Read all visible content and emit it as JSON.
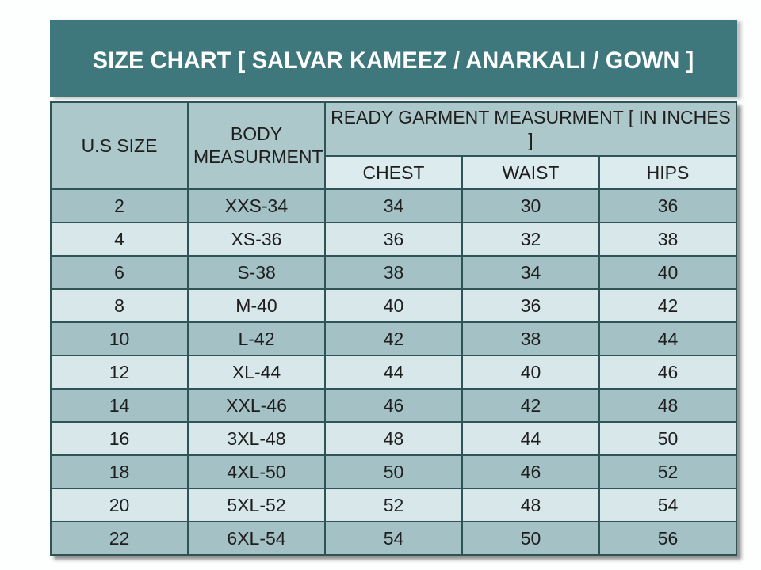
{
  "title": "SIZE CHART [ SALVAR KAMEEZ / ANARKALI / GOWN ]",
  "table": {
    "col_us_size": "U.S SIZE",
    "col_body_measurement": "BODY MEASURMENT",
    "col_ready_garment": "READY GARMENT MEASURMENT [ IN INCHES ]",
    "sub_columns": [
      "CHEST",
      "WAIST",
      "HIPS"
    ]
  },
  "chart_data": {
    "type": "table",
    "title": "SIZE CHART [ SALVAR KAMEEZ / ANARKALI / GOWN ]",
    "column_headers": [
      "U.S SIZE",
      "BODY MEASURMENT",
      "CHEST",
      "WAIST",
      "HIPS"
    ],
    "spanning_header": {
      "label": "READY GARMENT MEASURMENT [ IN INCHES ]",
      "covers": [
        "CHEST",
        "WAIST",
        "HIPS"
      ]
    },
    "units": "inches",
    "rows": [
      [
        "2",
        "XXS-34",
        "34",
        "30",
        "36"
      ],
      [
        "4",
        "XS-36",
        "36",
        "32",
        "38"
      ],
      [
        "6",
        "S-38",
        "38",
        "34",
        "40"
      ],
      [
        "8",
        "M-40",
        "40",
        "36",
        "42"
      ],
      [
        "10",
        "L-42",
        "42",
        "38",
        "44"
      ],
      [
        "12",
        "XL-44",
        "44",
        "40",
        "46"
      ],
      [
        "14",
        "XXL-46",
        "46",
        "42",
        "48"
      ],
      [
        "16",
        "3XL-48",
        "48",
        "44",
        "50"
      ],
      [
        "18",
        "4XL-50",
        "50",
        "46",
        "52"
      ],
      [
        "20",
        "5XL-52",
        "52",
        "48",
        "54"
      ],
      [
        "22",
        "6XL-54",
        "54",
        "50",
        "56"
      ]
    ]
  },
  "colors": {
    "title_bg": "#3e777c",
    "title_text": "#ffffff",
    "header_bg": "#adc8cb",
    "subheader_bg": "#dcebee",
    "row_dark": "#a4c1c5",
    "row_light": "#d7e7ea",
    "border": "#2e5457",
    "cell_text": "#1e1e1e",
    "page_bg": "#fdfefe"
  }
}
